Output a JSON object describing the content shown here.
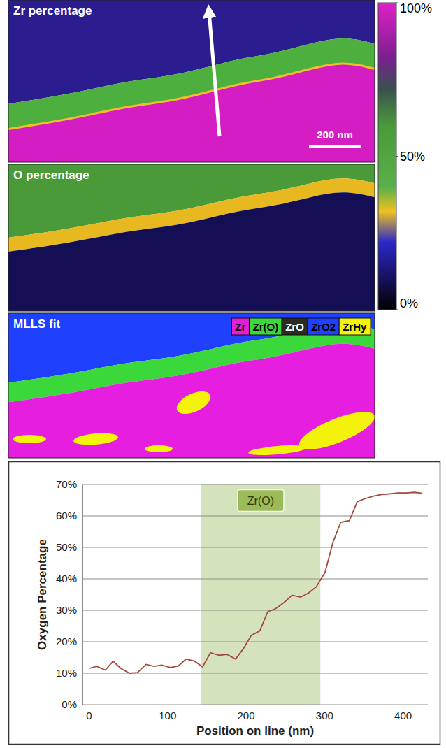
{
  "maps": [
    {
      "title": "Zr percentage",
      "scale_bar": "200 nm"
    },
    {
      "title": "O percentage"
    },
    {
      "title": "MLLS fit",
      "legend": [
        {
          "name": "Zr",
          "color": "#e21fd6"
        },
        {
          "name": "Zr(O)",
          "color": "#3ad83a"
        },
        {
          "name": "ZrO",
          "color": "#2b2b1f"
        },
        {
          "name": "ZrO2",
          "color": "#2040ff"
        },
        {
          "name": "ZrHy",
          "color": "#f2f20a"
        }
      ]
    }
  ],
  "color_bar": {
    "range": [
      0,
      100
    ],
    "ticks": [
      {
        "value": 100,
        "label": "100%"
      },
      {
        "value": 50,
        "label": "50%"
      },
      {
        "value": 0,
        "label": "0%"
      }
    ]
  },
  "chart_data": {
    "type": "line",
    "x_label": "Position on line (nm)",
    "y_label": "Oxygen Percentage",
    "x": [
      0,
      10,
      21,
      31,
      41,
      52,
      62,
      73,
      83,
      93,
      104,
      114,
      124,
      135,
      145,
      155,
      166,
      176,
      187,
      197,
      207,
      218,
      228,
      238,
      249,
      259,
      270,
      280,
      290,
      301,
      311,
      321,
      332,
      342,
      352,
      363,
      373,
      383,
      394,
      404,
      415,
      425
    ],
    "values": [
      11.5,
      12.2,
      11,
      13.8,
      11.5,
      10,
      10.2,
      12.8,
      12.2,
      12.6,
      11.8,
      12.3,
      14.5,
      13.8,
      12,
      16.5,
      15.7,
      16,
      14.5,
      17.8,
      22,
      23.5,
      29.5,
      30.5,
      32.5,
      34.8,
      34.2,
      35.5,
      37.5,
      42,
      51.5,
      58,
      58.5,
      64.5,
      65.5,
      66.3,
      66.8,
      67,
      67.3,
      67.3,
      67.5,
      67.2
    ],
    "color": "#a4493d",
    "xlim": [
      -8,
      432
    ],
    "xticks": [
      0,
      100,
      200,
      300,
      400
    ],
    "ylim": [
      0,
      70
    ],
    "yticks": [
      {
        "value": 0,
        "label": "0%"
      },
      {
        "value": 10,
        "label": "10%"
      },
      {
        "value": 20,
        "label": "20%"
      },
      {
        "value": 30,
        "label": "30%"
      },
      {
        "value": 40,
        "label": "40%"
      },
      {
        "value": 50,
        "label": "50%"
      },
      {
        "value": 60,
        "label": "60%"
      },
      {
        "value": 70,
        "label": "70%"
      }
    ],
    "grid": true,
    "annotations": [
      {
        "text": "Zr(O)",
        "x_start": 143,
        "x_end": 295,
        "color": "#d5e3bd"
      }
    ]
  }
}
